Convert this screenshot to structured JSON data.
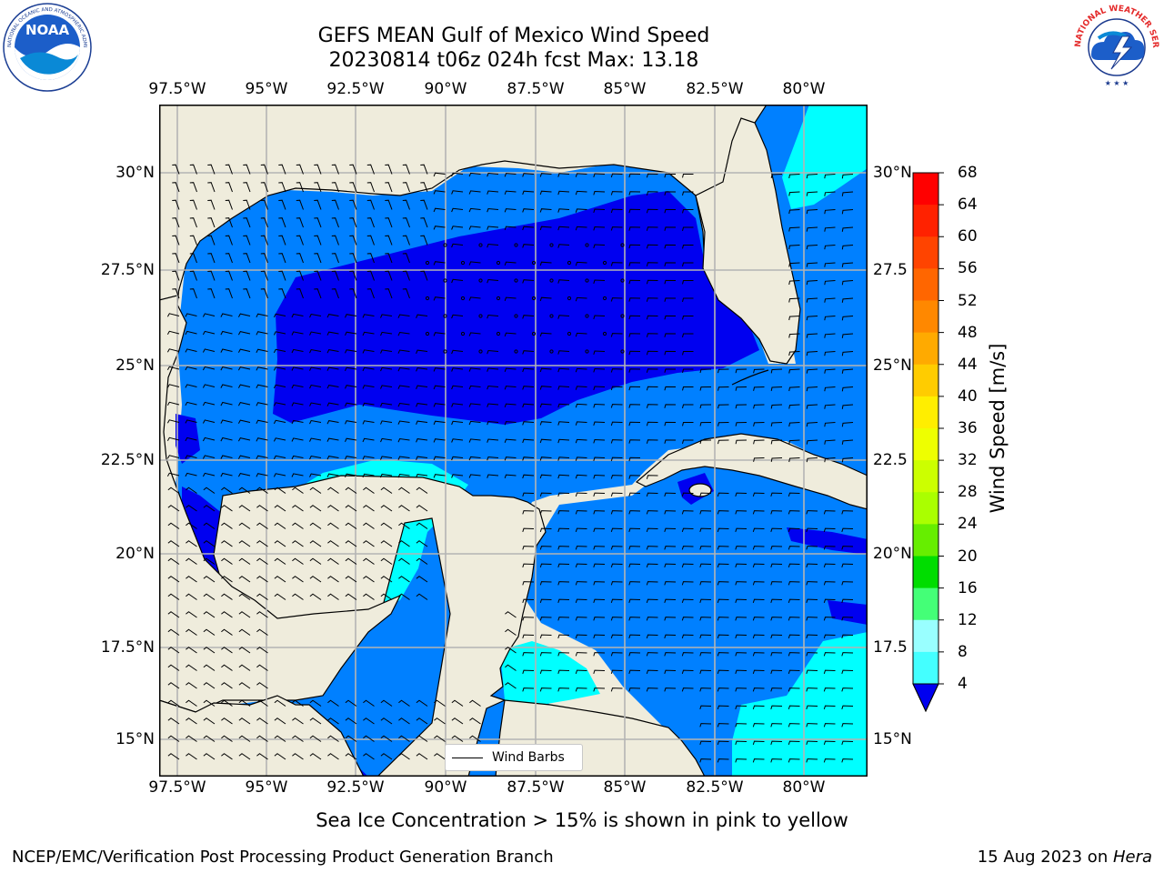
{
  "header": {
    "title_line1": "GEFS MEAN Gulf of Mexico Wind Speed",
    "title_line2": "20230814 t06z 024h fcst   Max: 13.18"
  },
  "logos": {
    "left": "noaa-logo",
    "left_text": "NOAA",
    "left_ring_text": "NATIONAL OCEANIC AND ATMOSPHERIC ADMINISTRATION · U.S. DEPARTMENT OF COMMERCE",
    "right": "nws-logo",
    "right_ring_text": "NATIONAL WEATHER SERVICE"
  },
  "map": {
    "lon_ticks": [
      "97.5°W",
      "95°W",
      "92.5°W",
      "90°W",
      "87.5°W",
      "85°W",
      "82.5°W",
      "80°W"
    ],
    "lat_ticks": [
      "30°N",
      "27.5°N",
      "25°N",
      "22.5°N",
      "20°N",
      "17.5°N",
      "15°N"
    ],
    "lat_ticks_right": [
      "30°N",
      "27.5",
      "25°N",
      "22.5",
      "20°N",
      "17.5",
      "15°N"
    ],
    "legend_label": "Wind Barbs",
    "colors": {
      "land": "#efecdc",
      "band_4_8": "#0080ff",
      "band_below_4": "#0000f0",
      "band_8_12": "#00ffff",
      "grid": "#b4b4b4"
    }
  },
  "colorbar": {
    "title": "Wind Speed [m/s]",
    "levels": [
      "68",
      "64",
      "60",
      "56",
      "52",
      "48",
      "44",
      "40",
      "36",
      "32",
      "28",
      "24",
      "20",
      "16",
      "12",
      "8",
      "4"
    ],
    "colors": [
      "#ff0000",
      "#ff2200",
      "#ff4400",
      "#ff6600",
      "#ff8800",
      "#ffaa00",
      "#ffcc00",
      "#ffee00",
      "#eeff00",
      "#ccff00",
      "#aaff00",
      "#66ee00",
      "#00dd00",
      "#44ff77",
      "#99ffff",
      "#44ffff",
      "#00f2ff",
      "#0080ff"
    ],
    "extend_color": "#0000f0"
  },
  "footer": {
    "note": "Sea Ice Concentration > 15% is shown in pink to yellow",
    "credit_left": "NCEP/EMC/Verification Post Processing Product Generation Branch",
    "credit_date": "15 Aug 2023 on ",
    "credit_machine": "Hera"
  }
}
